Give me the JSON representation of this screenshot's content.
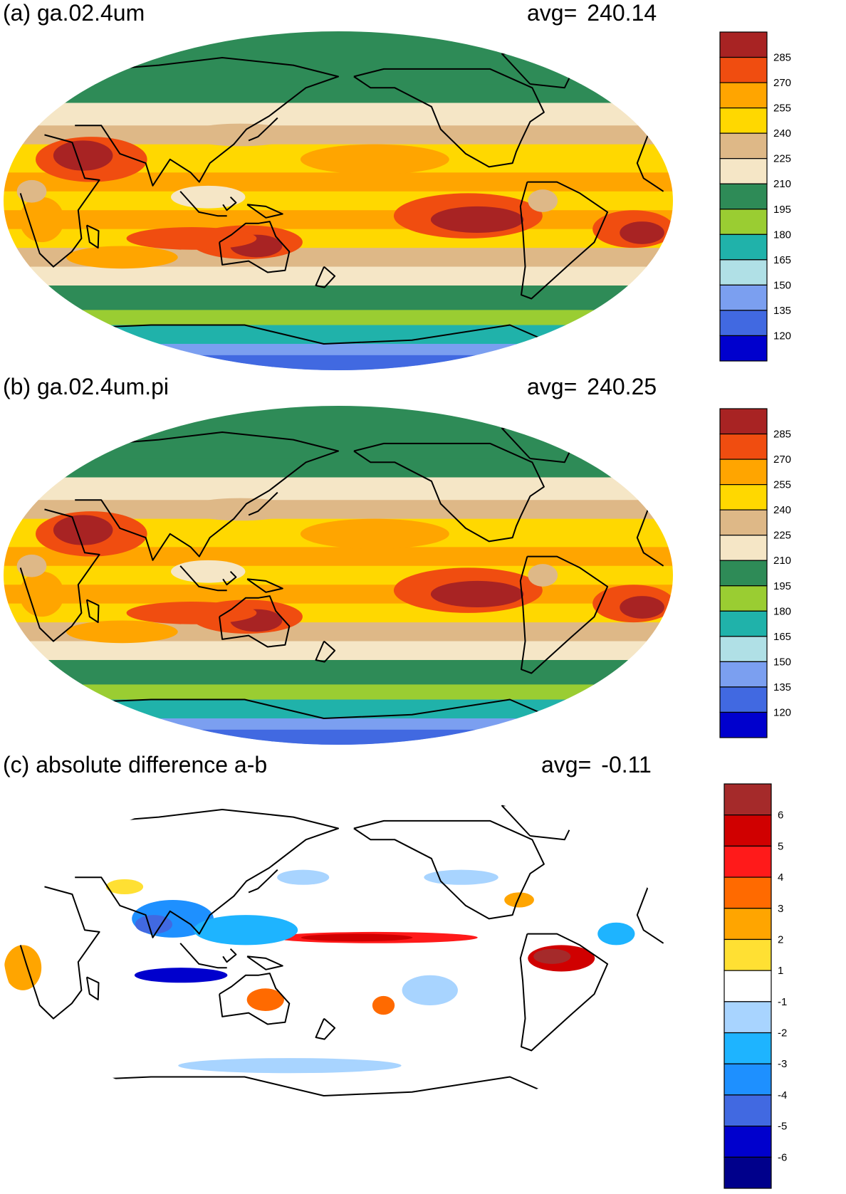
{
  "panels": [
    {
      "id": "a",
      "title": "(a) ga.02.4um",
      "avg_label": "avg=",
      "avg_value": "240.14",
      "colorbar": {
        "levels": [
          "285",
          "270",
          "255",
          "240",
          "225",
          "210",
          "195",
          "180",
          "165",
          "150",
          "135",
          "120"
        ],
        "colors": [
          "#a82323",
          "#f04d10",
          "#ffa500",
          "#ffd800",
          "#deb887",
          "#f5e6c6",
          "#2e8b57",
          "#9acd32",
          "#20b2aa",
          "#b0e0e6",
          "#7b9ff0",
          "#4169e1",
          "#0000cd"
        ]
      }
    },
    {
      "id": "b",
      "title": "(b) ga.02.4um.pi",
      "avg_label": "avg=",
      "avg_value": "240.25",
      "colorbar": {
        "levels": [
          "285",
          "270",
          "255",
          "240",
          "225",
          "210",
          "195",
          "180",
          "165",
          "150",
          "135",
          "120"
        ],
        "colors": [
          "#a82323",
          "#f04d10",
          "#ffa500",
          "#ffd800",
          "#deb887",
          "#f5e6c6",
          "#2e8b57",
          "#9acd32",
          "#20b2aa",
          "#b0e0e6",
          "#7b9ff0",
          "#4169e1",
          "#0000cd"
        ]
      }
    },
    {
      "id": "c",
      "title": "(c) absolute difference a-b",
      "avg_label": "avg=",
      "avg_value": "-0.11",
      "colorbar": {
        "levels": [
          "6",
          "5",
          "4",
          "3",
          "2",
          "1",
          "-1",
          "-2",
          "-3",
          "-4",
          "-5",
          "-6"
        ],
        "colors": [
          "#a52a2a",
          "#d00000",
          "#ff1a1a",
          "#ff6a00",
          "#ffa500",
          "#ffe033",
          "#ffffff",
          "#a8d4ff",
          "#1eb4ff",
          "#1e90ff",
          "#4169e1",
          "#0000cd",
          "#00008b"
        ]
      }
    }
  ]
}
